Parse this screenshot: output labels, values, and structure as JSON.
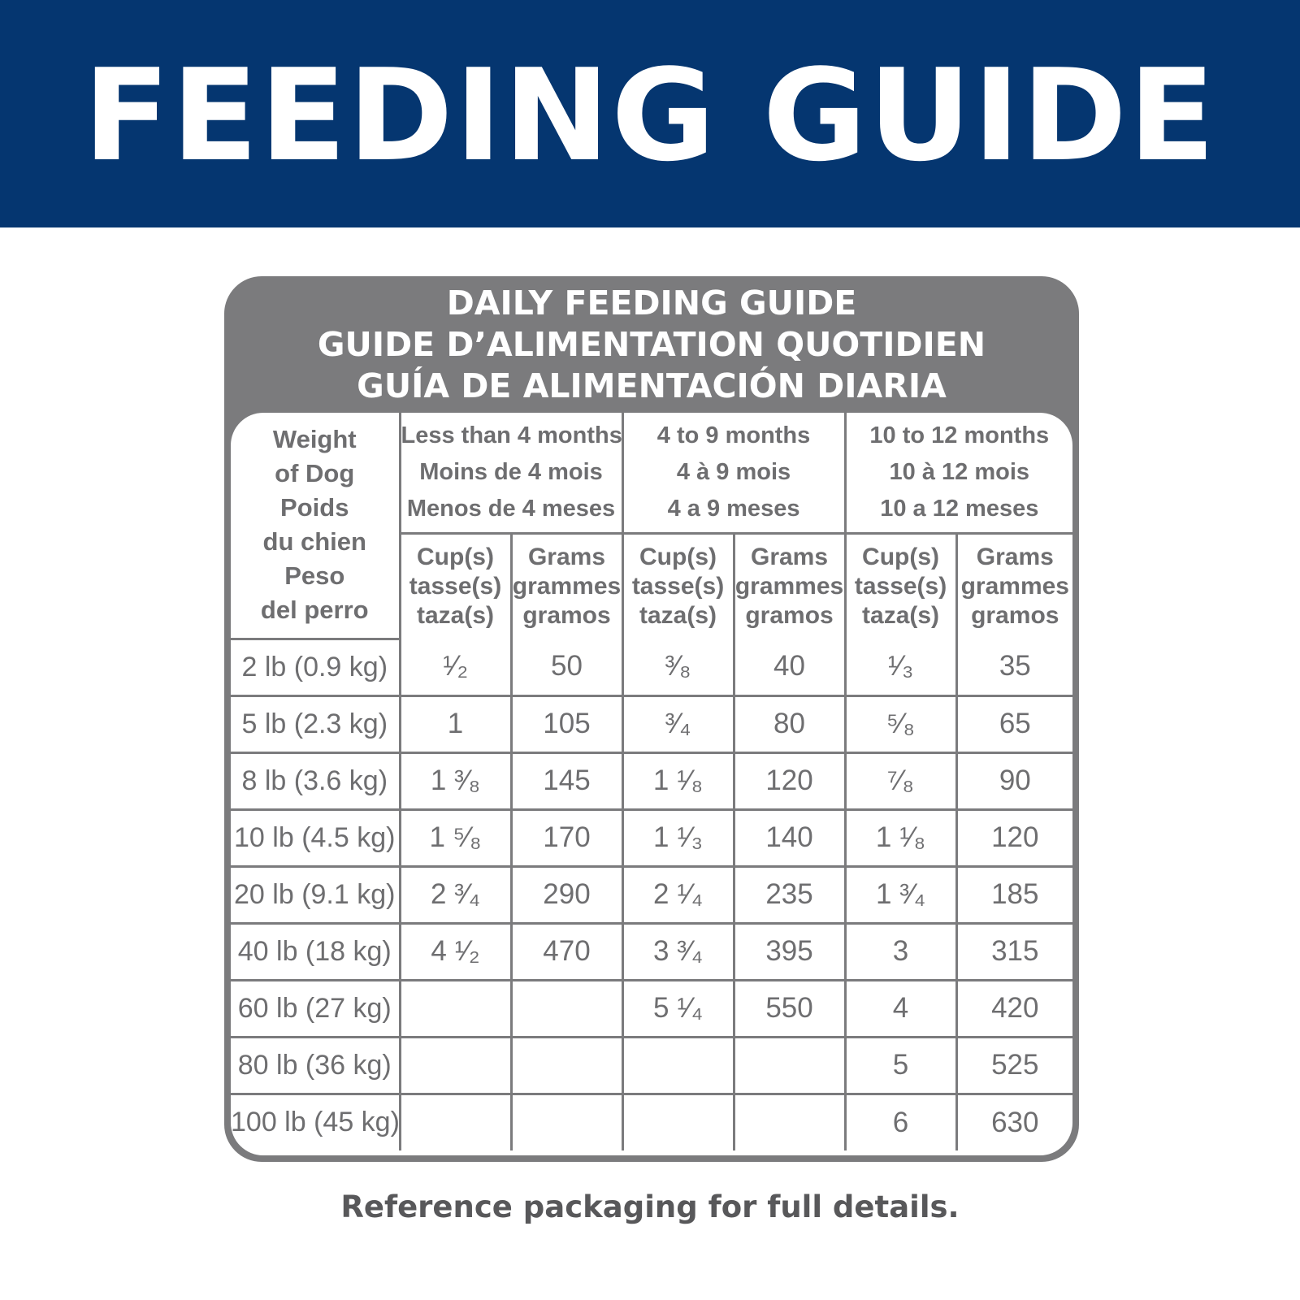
{
  "banner": {
    "title": "FEEDING GUIDE"
  },
  "card": {
    "title_lines": [
      "DAILY FEEDING GUIDE",
      "GUIDE D’ALIMENTATION QUOTIDIEN",
      "GUÍA DE ALIMENTACIÓN DIARIA"
    ]
  },
  "table": {
    "weight_header": [
      "Weight",
      "of Dog",
      "Poids",
      "du chien",
      "Peso",
      "del perro"
    ],
    "age_groups": [
      {
        "lines": [
          "Less than 4 months",
          "Moins de 4 mois",
          "Menos de 4 meses"
        ]
      },
      {
        "lines": [
          "4 to 9 months",
          "4 à 9 mois",
          "4 a 9 meses"
        ]
      },
      {
        "lines": [
          "10 to 12 months",
          "10 à 12 mois",
          "10 a 12 meses"
        ]
      }
    ],
    "unit_headers": {
      "cups": [
        "Cup(s)",
        "tasse(s)",
        "taza(s)"
      ],
      "grams": [
        "Grams",
        "grammes",
        "gramos"
      ]
    },
    "rows": [
      {
        "weight": "2 lb (0.9 kg)",
        "cells": [
          "¹⁄₂",
          "50",
          "³⁄₈",
          "40",
          "¹⁄₃",
          "35"
        ]
      },
      {
        "weight": "5 lb (2.3 kg)",
        "cells": [
          "1",
          "105",
          "³⁄₄",
          "80",
          "⁵⁄₈",
          "65"
        ]
      },
      {
        "weight": "8 lb (3.6 kg)",
        "cells": [
          "1 ³⁄₈",
          "145",
          "1 ¹⁄₈",
          "120",
          "⁷⁄₈",
          "90"
        ]
      },
      {
        "weight": "10 lb (4.5 kg)",
        "cells": [
          "1 ⁵⁄₈",
          "170",
          "1 ¹⁄₃",
          "140",
          "1 ¹⁄₈",
          "120"
        ]
      },
      {
        "weight": "20 lb (9.1 kg)",
        "cells": [
          "2 ³⁄₄",
          "290",
          "2 ¹⁄₄",
          "235",
          "1 ³⁄₄",
          "185"
        ]
      },
      {
        "weight": "40 lb (18 kg)",
        "cells": [
          "4 ¹⁄₂",
          "470",
          "3 ³⁄₄",
          "395",
          "3",
          "315"
        ]
      },
      {
        "weight": "60 lb (27 kg)",
        "cells": [
          "",
          "",
          "5 ¹⁄₄",
          "550",
          "4",
          "420"
        ]
      },
      {
        "weight": "80 lb (36 kg)",
        "cells": [
          "",
          "",
          "",
          "",
          "5",
          "525"
        ]
      },
      {
        "weight": "100 lb (45 kg)",
        "cells": [
          "",
          "",
          "",
          "",
          "6",
          "630"
        ]
      }
    ]
  },
  "footer": {
    "note": "Reference packaging for full details."
  },
  "colors": {
    "banner": "#053670",
    "card": "#7b7b7d",
    "text_gray": "#6e6e70"
  }
}
